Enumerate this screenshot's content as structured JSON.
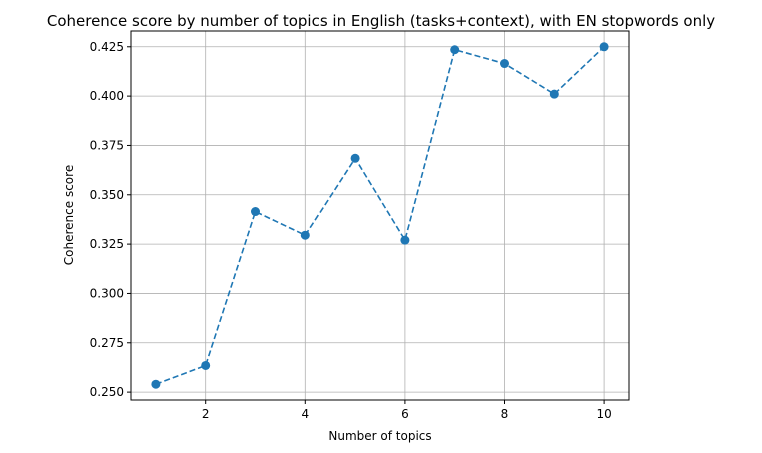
{
  "chart_data": {
    "type": "line",
    "title": "Coherence score by number of topics in English (tasks+context), with EN stopwords only",
    "xlabel": "Number of topics",
    "ylabel": "Coherence score",
    "xlim": [
      0.5,
      10.5
    ],
    "ylim": [
      0.246,
      0.433
    ],
    "xticks": [
      2,
      4,
      6,
      8,
      10
    ],
    "xtick_labels": [
      "2",
      "4",
      "6",
      "8",
      "10"
    ],
    "yticks": [
      0.25,
      0.275,
      0.3,
      0.325,
      0.35,
      0.375,
      0.4,
      0.425
    ],
    "ytick_labels": [
      "0.250",
      "0.275",
      "0.300",
      "0.325",
      "0.350",
      "0.375",
      "0.400",
      "0.425"
    ],
    "grid": true,
    "series": [
      {
        "x": [
          1,
          2,
          3,
          4,
          5,
          6,
          7,
          8,
          9,
          10
        ],
        "values": [
          0.254,
          0.2635,
          0.3415,
          0.3295,
          0.3685,
          0.327,
          0.4235,
          0.4165,
          0.401,
          0.425
        ],
        "color": "#1f77b4",
        "line_style": "dashed",
        "marker": "circle"
      }
    ]
  }
}
